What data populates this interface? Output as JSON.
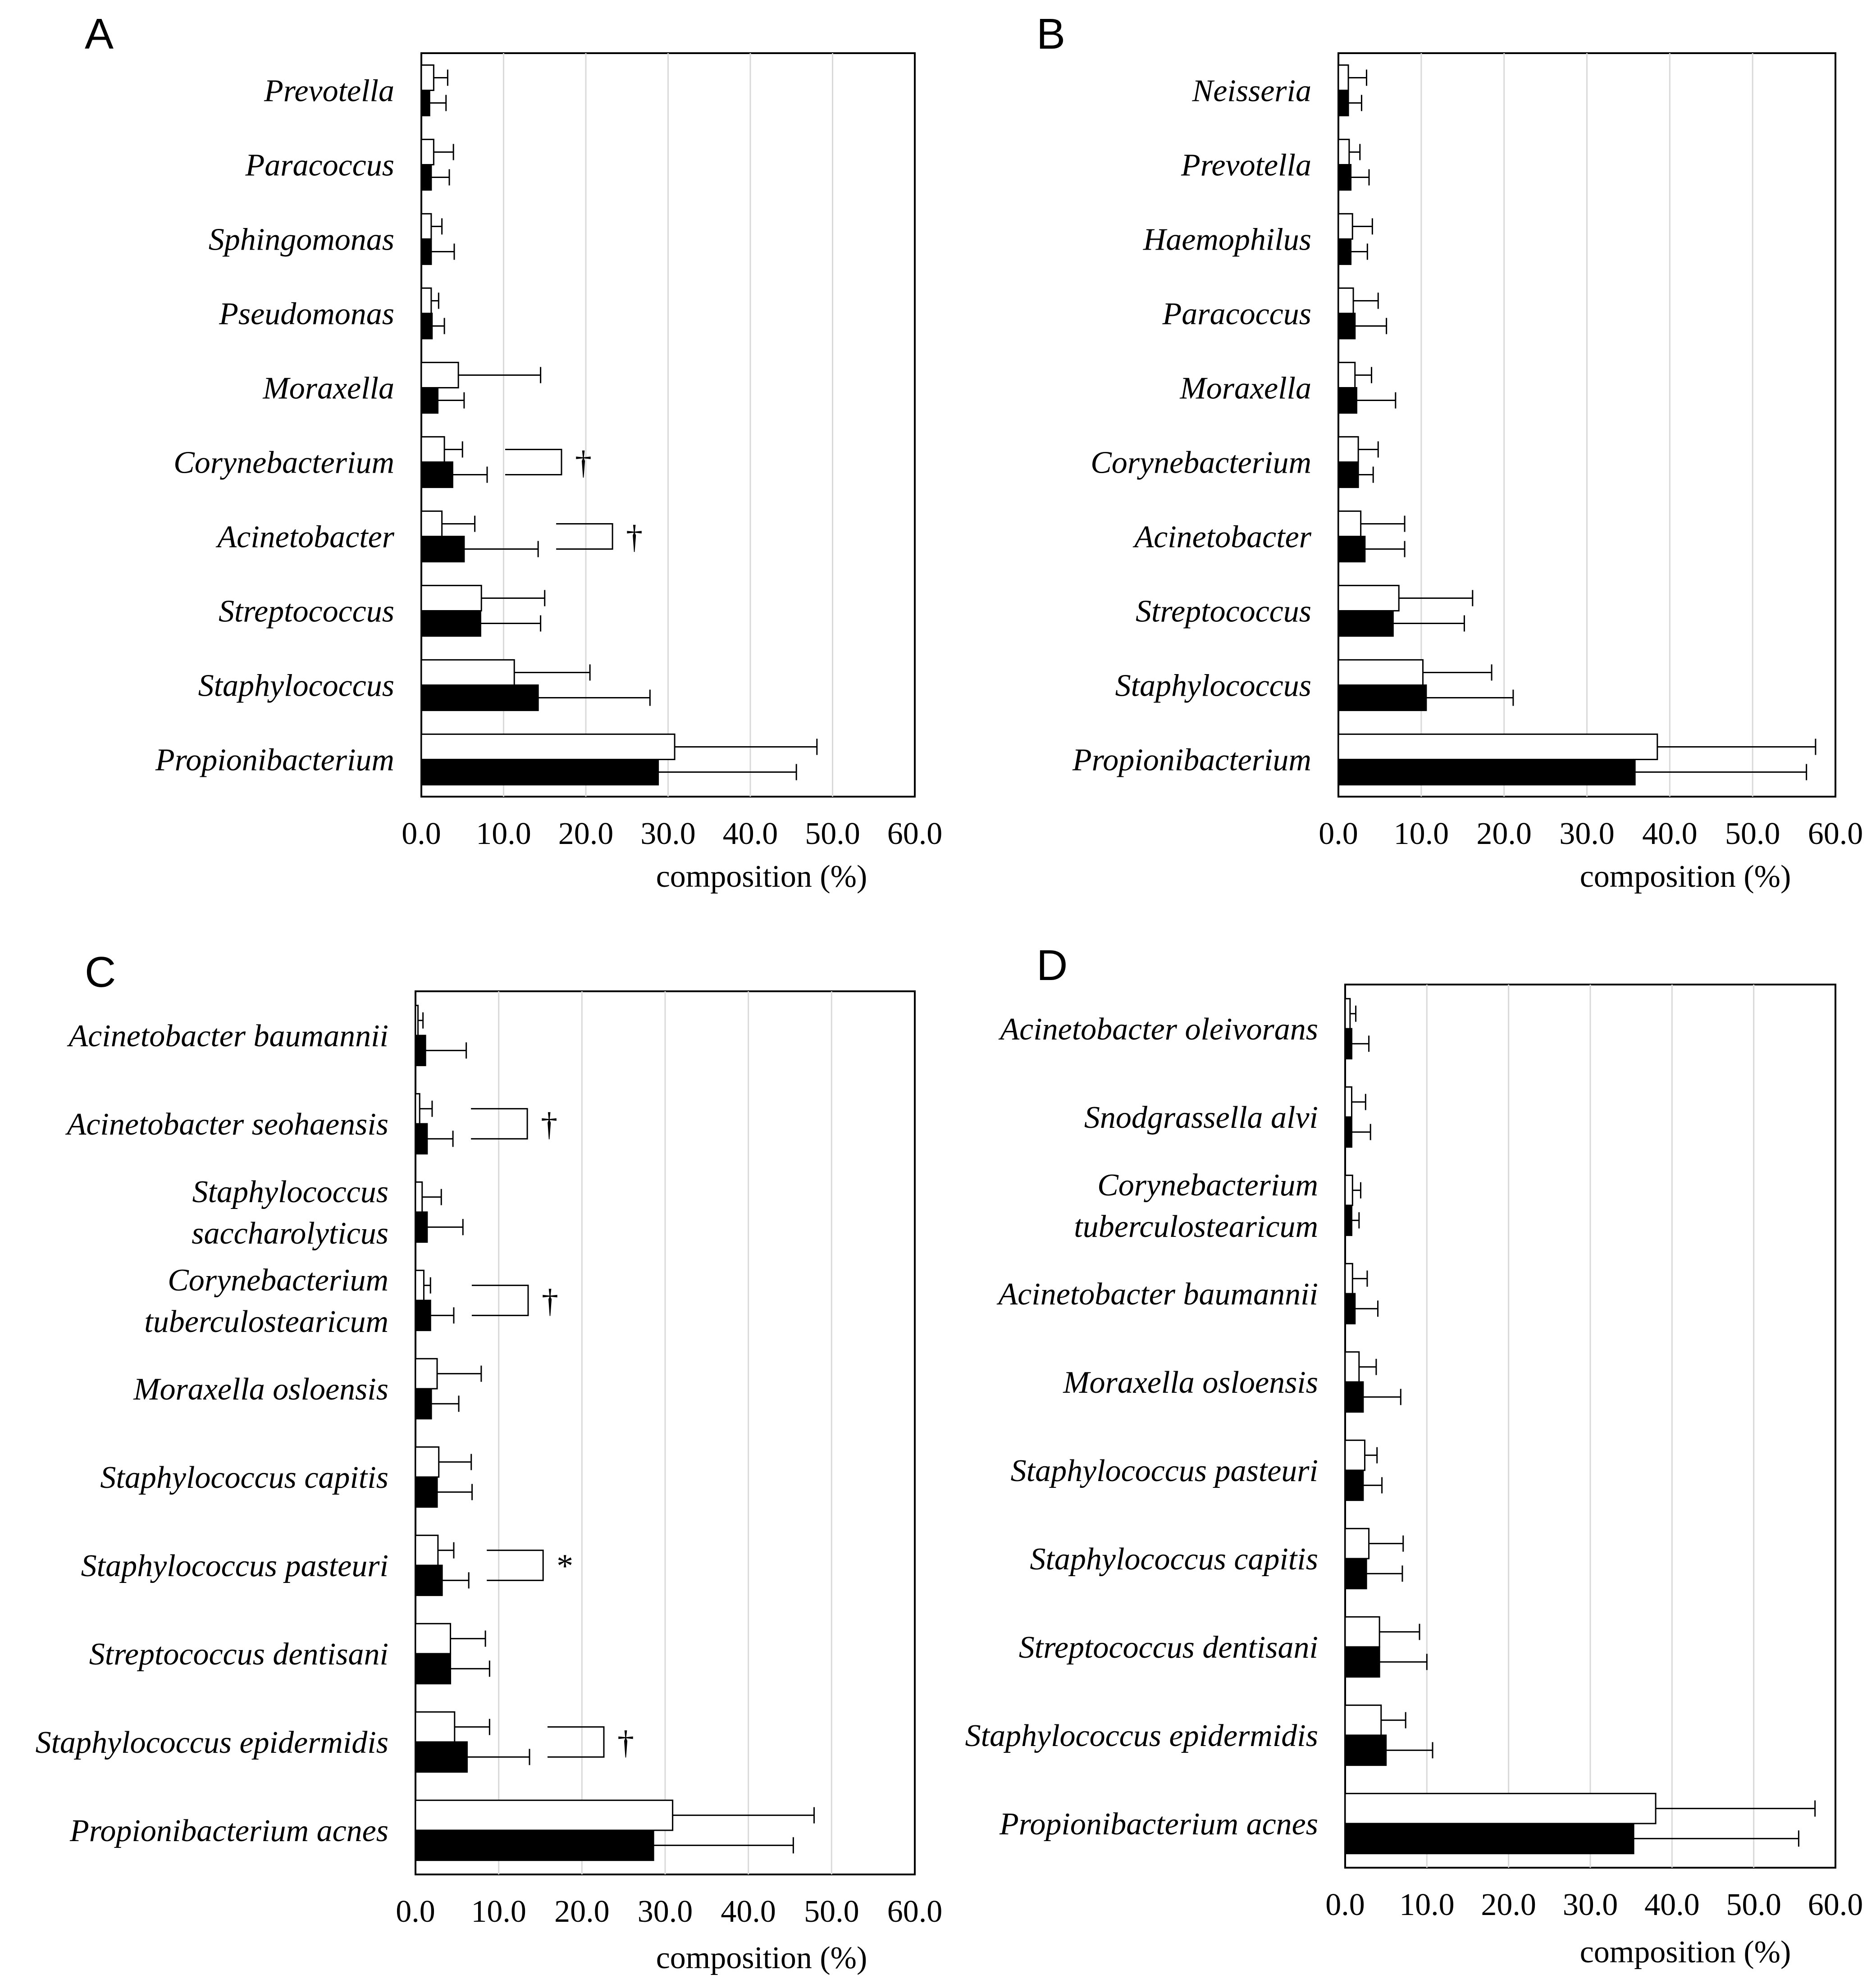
{
  "chart_data": [
    {
      "type": "bar",
      "panel": "A",
      "orientation": "horizontal",
      "xlabel": "composition (%)",
      "xlim": [
        0,
        60
      ],
      "xticks": [
        "0.0",
        "10.0",
        "20.0",
        "30.0",
        "40.0",
        "50.0",
        "60.0"
      ],
      "grid": "vertical",
      "categories": [
        [
          "Prevotella"
        ],
        [
          "Paracoccus"
        ],
        [
          "Sphingomonas"
        ],
        [
          "Pseudomonas"
        ],
        [
          "Moraxella"
        ],
        [
          "Corynebacterium"
        ],
        [
          "Acinetobacter"
        ],
        [
          "Streptococcus"
        ],
        [
          "Staphylococcus"
        ],
        [
          "Propionibacterium"
        ]
      ],
      "series": [
        {
          "name": "group 1 (open bars)",
          "color": "#ffffff",
          "values": [
            1.5,
            1.5,
            1.2,
            1.2,
            4.5,
            2.8,
            2.5,
            7.3,
            11.3,
            30.8
          ],
          "errors": [
            1.7,
            2.4,
            1.3,
            0.9,
            10.0,
            2.2,
            4.0,
            7.7,
            9.2,
            17.3
          ]
        },
        {
          "name": "group 2 (filled bars)",
          "color": "#000000",
          "values": [
            1.0,
            1.2,
            1.2,
            1.3,
            2.0,
            3.8,
            5.2,
            7.2,
            14.2,
            28.8
          ],
          "errors": [
            2.0,
            2.2,
            2.8,
            1.5,
            3.2,
            4.2,
            9.0,
            7.3,
            13.6,
            16.8
          ]
        }
      ],
      "annotations": [
        {
          "category": "Corynebacterium",
          "symbol": "†"
        },
        {
          "category": "Acinetobacter",
          "symbol": "†"
        }
      ]
    },
    {
      "type": "bar",
      "panel": "B",
      "orientation": "horizontal",
      "xlabel": "composition (%)",
      "xlim": [
        0,
        60
      ],
      "xticks": [
        "0.0",
        "10.0",
        "20.0",
        "30.0",
        "40.0",
        "50.0",
        "60.0"
      ],
      "grid": "vertical",
      "categories": [
        [
          "Neisseria"
        ],
        [
          "Prevotella"
        ],
        [
          "Haemophilus"
        ],
        [
          "Paracoccus"
        ],
        [
          "Moraxella"
        ],
        [
          "Corynebacterium"
        ],
        [
          "Acinetobacter"
        ],
        [
          "Streptococcus"
        ],
        [
          "Staphylococcus"
        ],
        [
          "Propionibacterium"
        ]
      ],
      "series": [
        {
          "name": "group 1 (open bars)",
          "color": "#ffffff",
          "values": [
            1.2,
            1.3,
            1.7,
            1.8,
            2.0,
            2.4,
            2.7,
            7.3,
            10.2,
            38.5
          ],
          "errors": [
            2.2,
            1.3,
            2.4,
            3.0,
            2.0,
            2.4,
            5.3,
            8.9,
            8.3,
            19.1
          ]
        },
        {
          "name": "group 2 (filled bars)",
          "color": "#000000",
          "values": [
            1.2,
            1.5,
            1.5,
            2.0,
            2.2,
            2.4,
            3.2,
            6.6,
            10.6,
            35.8
          ],
          "errors": [
            1.6,
            2.2,
            2.0,
            3.8,
            4.7,
            1.8,
            4.8,
            8.6,
            10.5,
            20.7
          ]
        }
      ],
      "annotations": []
    },
    {
      "type": "bar",
      "panel": "C",
      "orientation": "horizontal",
      "xlabel": "composition (%)",
      "xlim": [
        0,
        60
      ],
      "xticks": [
        "0.0",
        "10.0",
        "20.0",
        "30.0",
        "40.0",
        "50.0",
        "60.0"
      ],
      "grid": "vertical",
      "categories": [
        [
          "Acinetobacter baumannii"
        ],
        [
          "Acinetobacter seohaensis"
        ],
        [
          "Staphylococcus",
          "saccharolyticus"
        ],
        [
          "Corynebacterium",
          "tuberculostearicum"
        ],
        [
          "Moraxella osloensis"
        ],
        [
          "Staphylococcus capitis"
        ],
        [
          "Staphylococcus pasteuri"
        ],
        [
          "Streptococcus dentisani"
        ],
        [
          "Staphylococcus epidermidis"
        ],
        [
          "Propionibacterium acnes"
        ]
      ],
      "series": [
        {
          "name": "group 1 (open bars)",
          "color": "#ffffff",
          "values": [
            0.3,
            0.5,
            0.8,
            1.0,
            2.6,
            2.8,
            2.7,
            4.2,
            4.7,
            30.9
          ],
          "errors": [
            0.6,
            1.5,
            2.3,
            0.8,
            5.3,
            3.9,
            1.9,
            4.2,
            4.2,
            17.0
          ]
        },
        {
          "name": "group 2 (filled bars)",
          "color": "#000000",
          "values": [
            1.2,
            1.4,
            1.4,
            1.8,
            1.9,
            2.6,
            3.2,
            4.2,
            6.2,
            28.6
          ],
          "errors": [
            4.9,
            3.1,
            4.3,
            2.8,
            3.3,
            4.2,
            3.2,
            4.7,
            7.5,
            16.8
          ]
        }
      ],
      "annotations": [
        {
          "category": "Acinetobacter seohaensis",
          "symbol": "†"
        },
        {
          "category": "Corynebacterium tuberculostearicum",
          "symbol": "†"
        },
        {
          "category": "Staphylococcus pasteuri",
          "symbol": "*"
        },
        {
          "category": "Staphylococcus epidermidis",
          "symbol": "†"
        }
      ]
    },
    {
      "type": "bar",
      "panel": "D",
      "orientation": "horizontal",
      "xlabel": "composition (%)",
      "xlim": [
        0,
        60
      ],
      "xticks": [
        "0.0",
        "10.0",
        "20.0",
        "30.0",
        "40.0",
        "50.0",
        "60.0"
      ],
      "grid": "vertical",
      "categories": [
        [
          "Acinetobacter oleivorans"
        ],
        [
          "Snodgrassella alvi"
        ],
        [
          "Corynebacterium",
          "tuberculostearicum"
        ],
        [
          "Acinetobacter baumannii"
        ],
        [
          "Moraxella osloensis"
        ],
        [
          "Staphylococcus pasteuri"
        ],
        [
          "Staphylococcus capitis"
        ],
        [
          "Streptococcus dentisani"
        ],
        [
          "Staphylococcus epidermidis"
        ],
        [
          "Propionibacterium acnes"
        ]
      ],
      "series": [
        {
          "name": "group 1 (open bars)",
          "color": "#ffffff",
          "values": [
            0.6,
            0.8,
            0.9,
            0.9,
            1.7,
            2.4,
            2.9,
            4.2,
            4.4,
            38.0
          ],
          "errors": [
            0.7,
            1.7,
            1.0,
            1.8,
            2.1,
            1.5,
            4.2,
            4.9,
            3.0,
            19.5
          ]
        },
        {
          "name": "group 2 (filled bars)",
          "color": "#000000",
          "values": [
            0.8,
            0.8,
            0.8,
            1.2,
            2.2,
            2.2,
            2.6,
            4.2,
            5.0,
            35.3
          ],
          "errors": [
            2.1,
            2.3,
            0.9,
            2.8,
            4.6,
            2.3,
            4.4,
            5.8,
            5.7,
            20.2
          ]
        }
      ],
      "annotations": []
    }
  ]
}
